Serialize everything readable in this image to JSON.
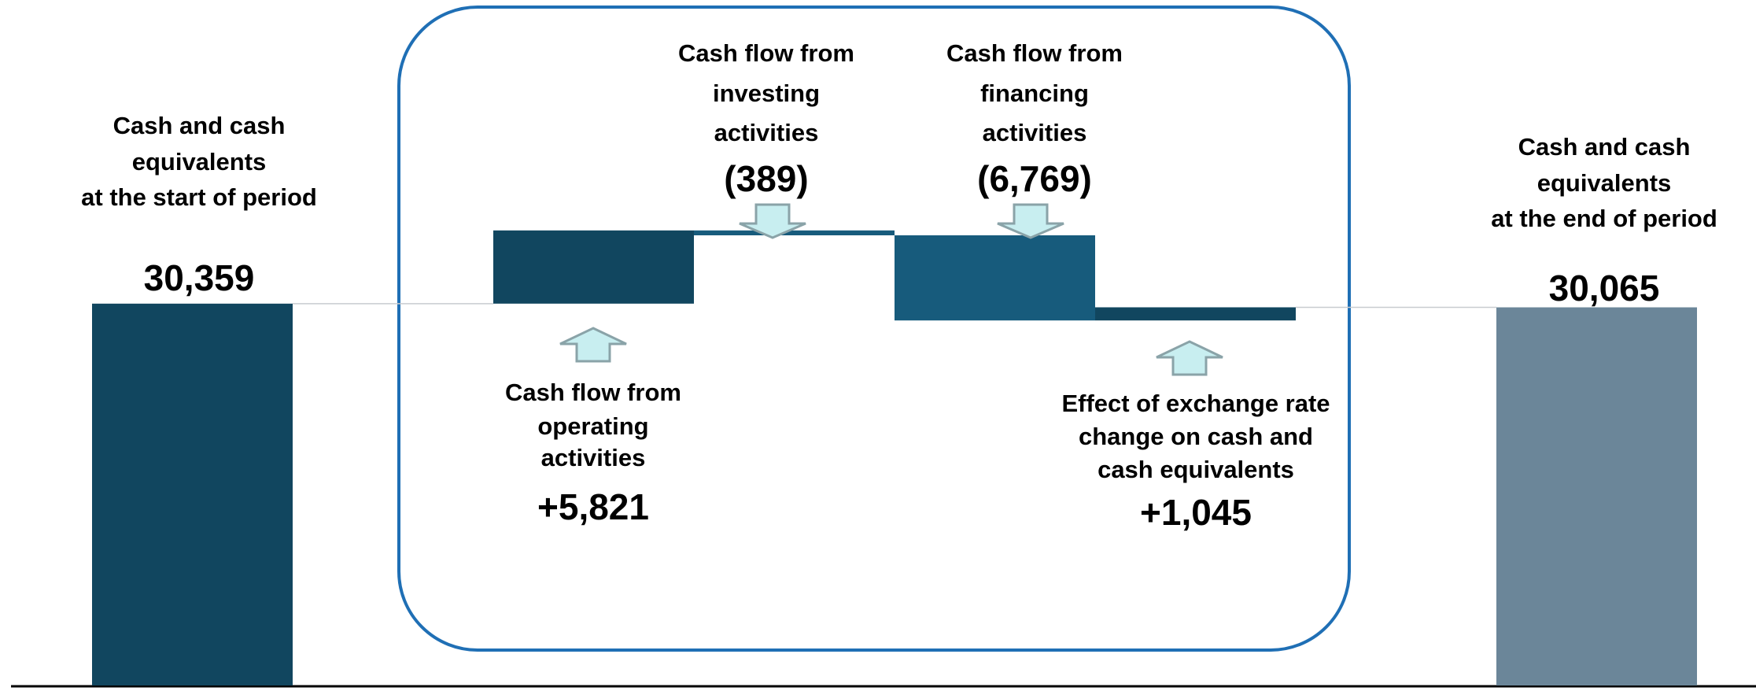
{
  "chart_data": {
    "type": "waterfall",
    "categories": [
      [
        "Cash and cash",
        "equivalents",
        "at the start of period"
      ],
      [
        "Cash flow from",
        "operating",
        "activities"
      ],
      [
        "Cash flow from",
        "investing",
        "activities"
      ],
      [
        "Cash flow from",
        "financing",
        "activities"
      ],
      [
        "Effect of exchange rate",
        "change on cash and",
        "cash equivalents"
      ],
      [
        "Cash and cash",
        "equivalents",
        "at the end of period"
      ]
    ],
    "values": [
      30359,
      5821,
      -389,
      -6769,
      1045,
      30065
    ],
    "value_labels": [
      "30,359",
      "+5,821",
      "(389)",
      "(6,769)",
      "+1,045",
      "30,065"
    ],
    "colors": [
      "#11465f",
      "#11465f",
      "#175b7c",
      "#175b7c",
      "#11465f",
      "#6b8699"
    ],
    "ylim": [
      0,
      54500
    ]
  }
}
